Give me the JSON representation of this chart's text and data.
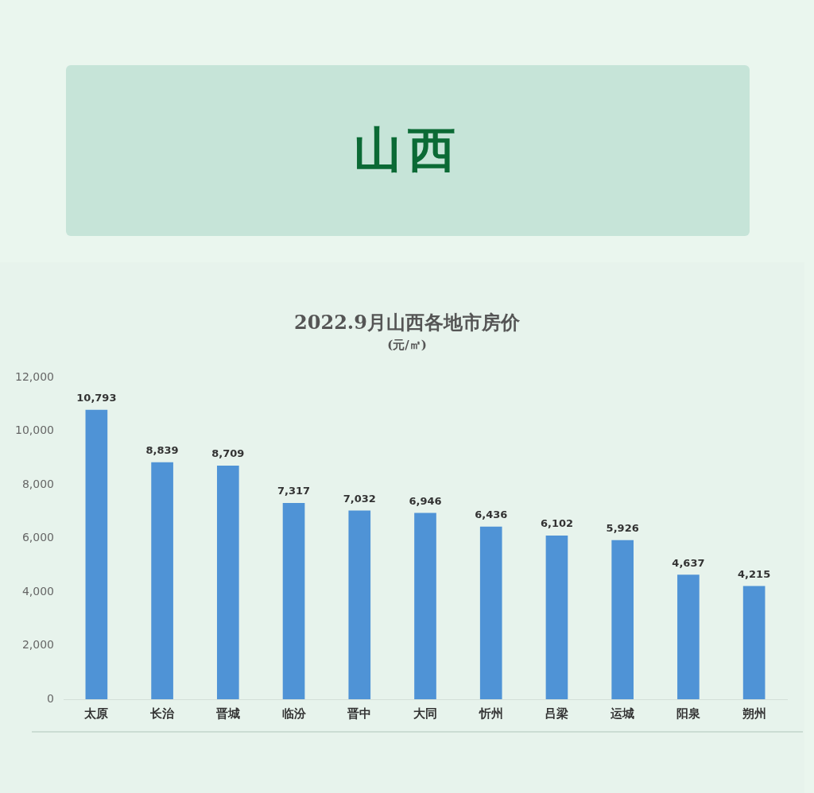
{
  "chart_data": {
    "type": "bar",
    "title": "2022.9月山西各地市房价",
    "subtitle": "(元/㎡)",
    "annotations": [
      "山西"
    ],
    "categories": [
      "太原",
      "长治",
      "晋城",
      "临汾",
      "晋中",
      "大同",
      "忻州",
      "吕梁",
      "运城",
      "阳泉",
      "朔州"
    ],
    "values": [
      10793,
      8839,
      8709,
      7317,
      7032,
      6946,
      6436,
      6102,
      5926,
      4637,
      4215
    ],
    "value_labels": [
      "10,793",
      "8,839",
      "8,709",
      "7,317",
      "7,032",
      "6,946",
      "6,436",
      "6,102",
      "5,926",
      "4,637",
      "4,215"
    ],
    "color": "#4f93d6",
    "ylim": [
      0,
      12000
    ],
    "yticks": [
      0,
      {
        "value": 2000,
        "label": "2,000"
      },
      {
        "value": 4000,
        "label": "4,000"
      },
      {
        "value": 6000,
        "label": "6,000"
      },
      {
        "value": 8000,
        "label": "8,000"
      },
      {
        "value": 10000,
        "label": "10,000"
      },
      {
        "value": 12000,
        "label": "12,000"
      }
    ]
  }
}
